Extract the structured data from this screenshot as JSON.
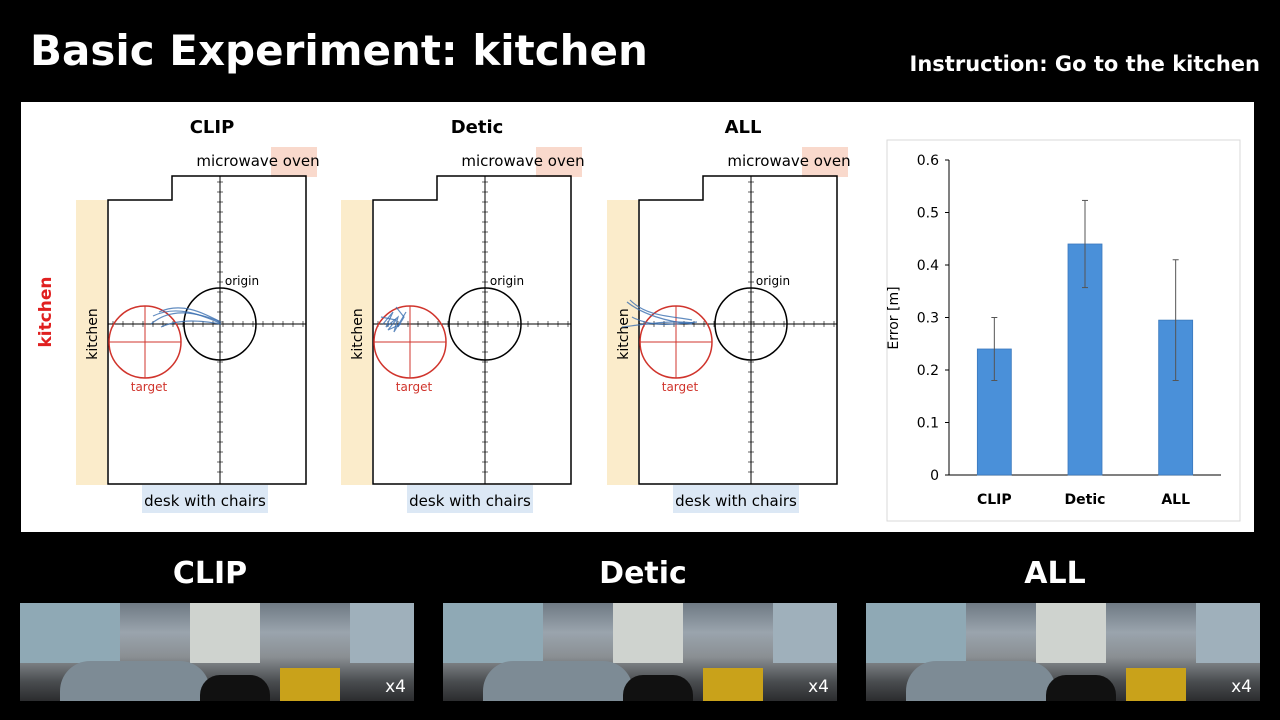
{
  "title": "Basic Experiment: kitchen",
  "instruction": "Instruction: Go to the kitchen",
  "row_label": "kitchen",
  "maps": [
    {
      "title": "CLIP",
      "top_label": "microwave oven",
      "left_label": "kitchen",
      "bottom_label": "desk with chairs",
      "origin_label": "origin",
      "target_label": "target"
    },
    {
      "title": "Detic",
      "top_label": "microwave oven",
      "left_label": "kitchen",
      "bottom_label": "desk with chairs",
      "origin_label": "origin",
      "target_label": "target"
    },
    {
      "title": "ALL",
      "top_label": "microwave oven",
      "left_label": "kitchen",
      "bottom_label": "desk with chairs",
      "origin_label": "origin",
      "target_label": "target"
    }
  ],
  "chart_data": {
    "type": "bar",
    "categories": [
      "CLIP",
      "Detic",
      "ALL"
    ],
    "values": [
      0.24,
      0.44,
      0.295
    ],
    "error": [
      0.06,
      0.083,
      0.115
    ],
    "ylabel": "Error [m]",
    "ylim": [
      0,
      0.6
    ],
    "yticks": [
      "0",
      "0.1",
      "0.2",
      "0.3",
      "0.4",
      "0.5",
      "0.6"
    ],
    "bar_color": "#4a90d9"
  },
  "cameras": [
    {
      "title": "CLIP",
      "speed": "x4"
    },
    {
      "title": "Detic",
      "speed": "x4"
    },
    {
      "title": "ALL",
      "speed": "x4"
    }
  ],
  "colors": {
    "target": "#d0342c",
    "row_label": "#e02020",
    "kitchen_band": "#fbeccb",
    "oven_band": "#f9d9cc",
    "desk_band": "#dce8f5",
    "trajectory": "#3b6fb0"
  }
}
